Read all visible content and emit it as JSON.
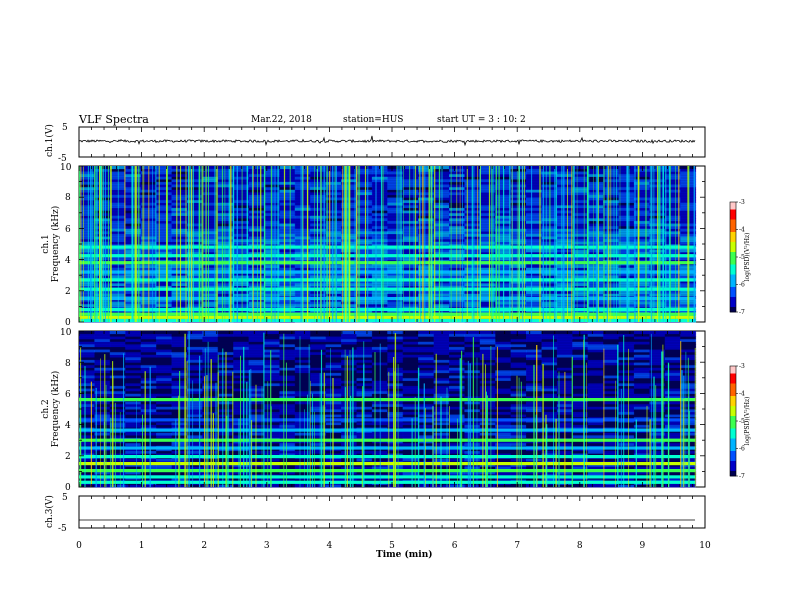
{
  "header": {
    "title": "VLF Spectra",
    "date": "Mar.22, 2018",
    "station": "station=HUS",
    "start": "start  UT =   3 : 10: 2"
  },
  "colors": {
    "background": "#00005a",
    "colormap": [
      "#000050",
      "#0000c8",
      "#0050ff",
      "#00b4ff",
      "#00ffd2",
      "#3cff50",
      "#c8ff00",
      "#ffd200",
      "#ff6400",
      "#ff0000",
      "#ffc8c8"
    ]
  },
  "chart_data": [
    {
      "type": "line",
      "panel": "waveform-ch1",
      "ylabel": "ch.1(V)",
      "ylim": [
        -5,
        5
      ],
      "yticks": [
        "5",
        "-5"
      ],
      "xlim": [
        0,
        10
      ],
      "level": 0.3,
      "noise_amplitude": 0.4
    },
    {
      "type": "heatmap",
      "panel": "spectrogram-ch1",
      "ylabel": "ch.1\nFrequency (kHz)",
      "ylim": [
        0,
        10
      ],
      "yticks": [
        "0",
        "2",
        "4",
        "6",
        "8",
        "10"
      ],
      "xlim": [
        0,
        9.85
      ],
      "colorbar": {
        "label": "log(PSD)(V²/Hz)",
        "ticks": [
          "-3",
          "-4",
          "-5",
          "-6",
          "-7"
        ],
        "range": [
          -7,
          -3
        ]
      },
      "bands": [
        {
          "freq_khz": 0.1,
          "level": -5.6
        },
        {
          "freq_khz": 0.3,
          "level": -4.8
        },
        {
          "freq_khz": 0.5,
          "level": -5.2
        },
        {
          "freq_khz": 0.8,
          "level": -5.4
        },
        {
          "freq_khz": 1.5,
          "level": -5.9
        },
        {
          "freq_khz": 2.1,
          "level": -5.3
        },
        {
          "freq_khz": 2.7,
          "level": -5.6
        },
        {
          "freq_khz": 3.2,
          "level": -6.0
        },
        {
          "freq_khz": 3.8,
          "level": -5.2
        },
        {
          "freq_khz": 4.25,
          "level": -5.5
        },
        {
          "freq_khz": 4.8,
          "level": -5.3
        }
      ]
    },
    {
      "type": "heatmap",
      "panel": "spectrogram-ch2",
      "ylabel": "ch.2\nFrequency (kHz)",
      "ylim": [
        0,
        10
      ],
      "yticks": [
        "0",
        "2",
        "4",
        "6",
        "8",
        "10"
      ],
      "xlim": [
        0,
        9.85
      ],
      "colorbar": {
        "label": "log(PSD)(V²/Hz)",
        "ticks": [
          "-3",
          "-4",
          "-5",
          "-6",
          "-7"
        ],
        "range": [
          -7,
          -3
        ]
      },
      "bands": [
        {
          "freq_khz": 0.3,
          "level": -5.6
        },
        {
          "freq_khz": 0.65,
          "level": -5.3
        },
        {
          "freq_khz": 1.05,
          "level": -4.9
        },
        {
          "freq_khz": 1.5,
          "level": -4.7
        },
        {
          "freq_khz": 1.95,
          "level": -5.5
        },
        {
          "freq_khz": 2.5,
          "level": -5.8
        },
        {
          "freq_khz": 3.0,
          "level": -4.9
        },
        {
          "freq_khz": 3.65,
          "level": -5.8
        },
        {
          "freq_khz": 4.3,
          "level": -6.1
        },
        {
          "freq_khz": 5.6,
          "level": -5.2
        }
      ]
    },
    {
      "type": "line",
      "panel": "waveform-ch3",
      "ylabel": "ch.3(V)",
      "ylim": [
        -5,
        5
      ],
      "yticks": [
        "5",
        "-5"
      ],
      "xlim": [
        0,
        10
      ],
      "level": -2.5,
      "noise_amplitude": 0
    }
  ],
  "x_axis": {
    "label": "Time (min)",
    "ticks": [
      "0",
      "1",
      "2",
      "3",
      "4",
      "5",
      "6",
      "7",
      "8",
      "9",
      "10"
    ]
  }
}
